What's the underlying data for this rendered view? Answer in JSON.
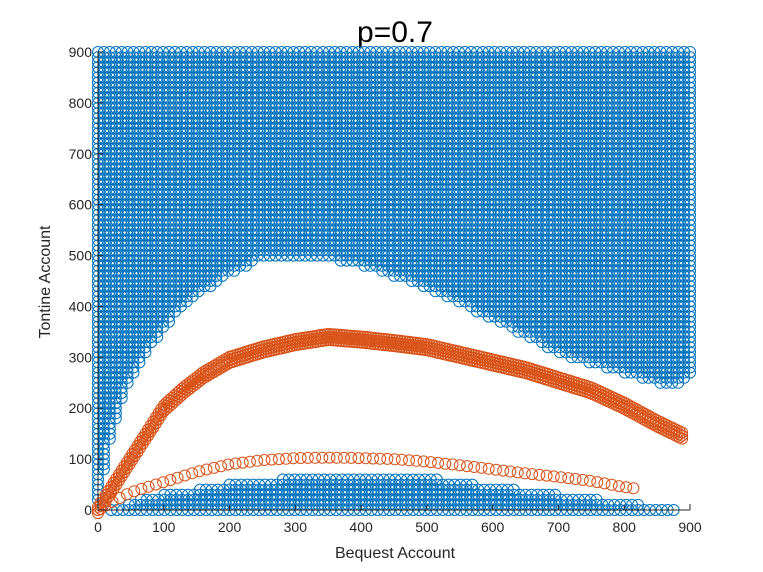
{
  "chart_data": {
    "type": "scatter",
    "title": "p=0.7",
    "xlabel": "Bequest Account",
    "ylabel": "Tontine Account",
    "xlim": [
      0,
      900
    ],
    "ylim": [
      0,
      900
    ],
    "xticks": [
      0,
      100,
      200,
      300,
      400,
      500,
      600,
      700,
      800,
      900
    ],
    "yticks": [
      0,
      100,
      200,
      300,
      400,
      500,
      600,
      700,
      800,
      900
    ],
    "grid": false,
    "legend": "none",
    "marker": "open-circle",
    "colors": {
      "blue": "#0072bd",
      "orange": "#d95319"
    },
    "series": [
      {
        "color": "#0072bd",
        "regions": [
          {
            "kind": "upper-band",
            "x_step": 9,
            "y_step": 10,
            "y_max": 900,
            "lower_boundary": [
              [
                0,
                20
              ],
              [
                10,
                80
              ],
              [
                20,
                150
              ],
              [
                40,
                230
              ],
              [
                70,
                300
              ],
              [
                100,
                360
              ],
              [
                150,
                420
              ],
              [
                200,
                465
              ],
              [
                250,
                495
              ],
              [
                300,
                500
              ],
              [
                350,
                495
              ],
              [
                400,
                480
              ],
              [
                450,
                460
              ],
              [
                500,
                435
              ],
              [
                550,
                405
              ],
              [
                600,
                375
              ],
              [
                650,
                340
              ],
              [
                700,
                310
              ],
              [
                750,
                285
              ],
              [
                800,
                270
              ],
              [
                850,
                250
              ],
              [
                880,
                240
              ],
              [
                900,
                265
              ]
            ]
          },
          {
            "kind": "lower-band",
            "x_step": 9,
            "y_step": 10,
            "y_min": 0,
            "upper_boundary": [
              [
                20,
                0
              ],
              [
                60,
                20
              ],
              [
                120,
                35
              ],
              [
                200,
                50
              ],
              [
                280,
                60
              ],
              [
                350,
                65
              ],
              [
                450,
                65
              ],
              [
                520,
                60
              ],
              [
                600,
                45
              ],
              [
                700,
                30
              ],
              [
                800,
                15
              ],
              [
                880,
                0
              ]
            ]
          }
        ]
      },
      {
        "color": "#d95319",
        "curves": [
          {
            "kind": "thick-band",
            "points": [
              [
                0,
                0
              ],
              [
                20,
                40
              ],
              [
                40,
                80
              ],
              [
                60,
                120
              ],
              [
                80,
                160
              ],
              [
                100,
                200
              ],
              [
                130,
                235
              ],
              [
                160,
                265
              ],
              [
                200,
                295
              ],
              [
                250,
                315
              ],
              [
                300,
                330
              ],
              [
                350,
                340
              ],
              [
                400,
                335
              ],
              [
                450,
                328
              ],
              [
                500,
                320
              ],
              [
                550,
                305
              ],
              [
                600,
                290
              ],
              [
                650,
                275
              ],
              [
                700,
                255
              ],
              [
                750,
                235
              ],
              [
                800,
                205
              ],
              [
                850,
                170
              ],
              [
                890,
                145
              ]
            ]
          },
          {
            "kind": "thin-arc",
            "points": [
              [
                0,
                0
              ],
              [
                20,
                15
              ],
              [
                50,
                35
              ],
              [
                100,
                55
              ],
              [
                150,
                75
              ],
              [
                200,
                90
              ],
              [
                250,
                98
              ],
              [
                300,
                102
              ],
              [
                350,
                103
              ],
              [
                400,
                102
              ],
              [
                450,
                100
              ],
              [
                500,
                95
              ],
              [
                550,
                88
              ],
              [
                600,
                80
              ],
              [
                650,
                72
              ],
              [
                700,
                65
              ],
              [
                750,
                57
              ],
              [
                800,
                45
              ],
              [
                820,
                42
              ]
            ]
          }
        ]
      }
    ]
  }
}
